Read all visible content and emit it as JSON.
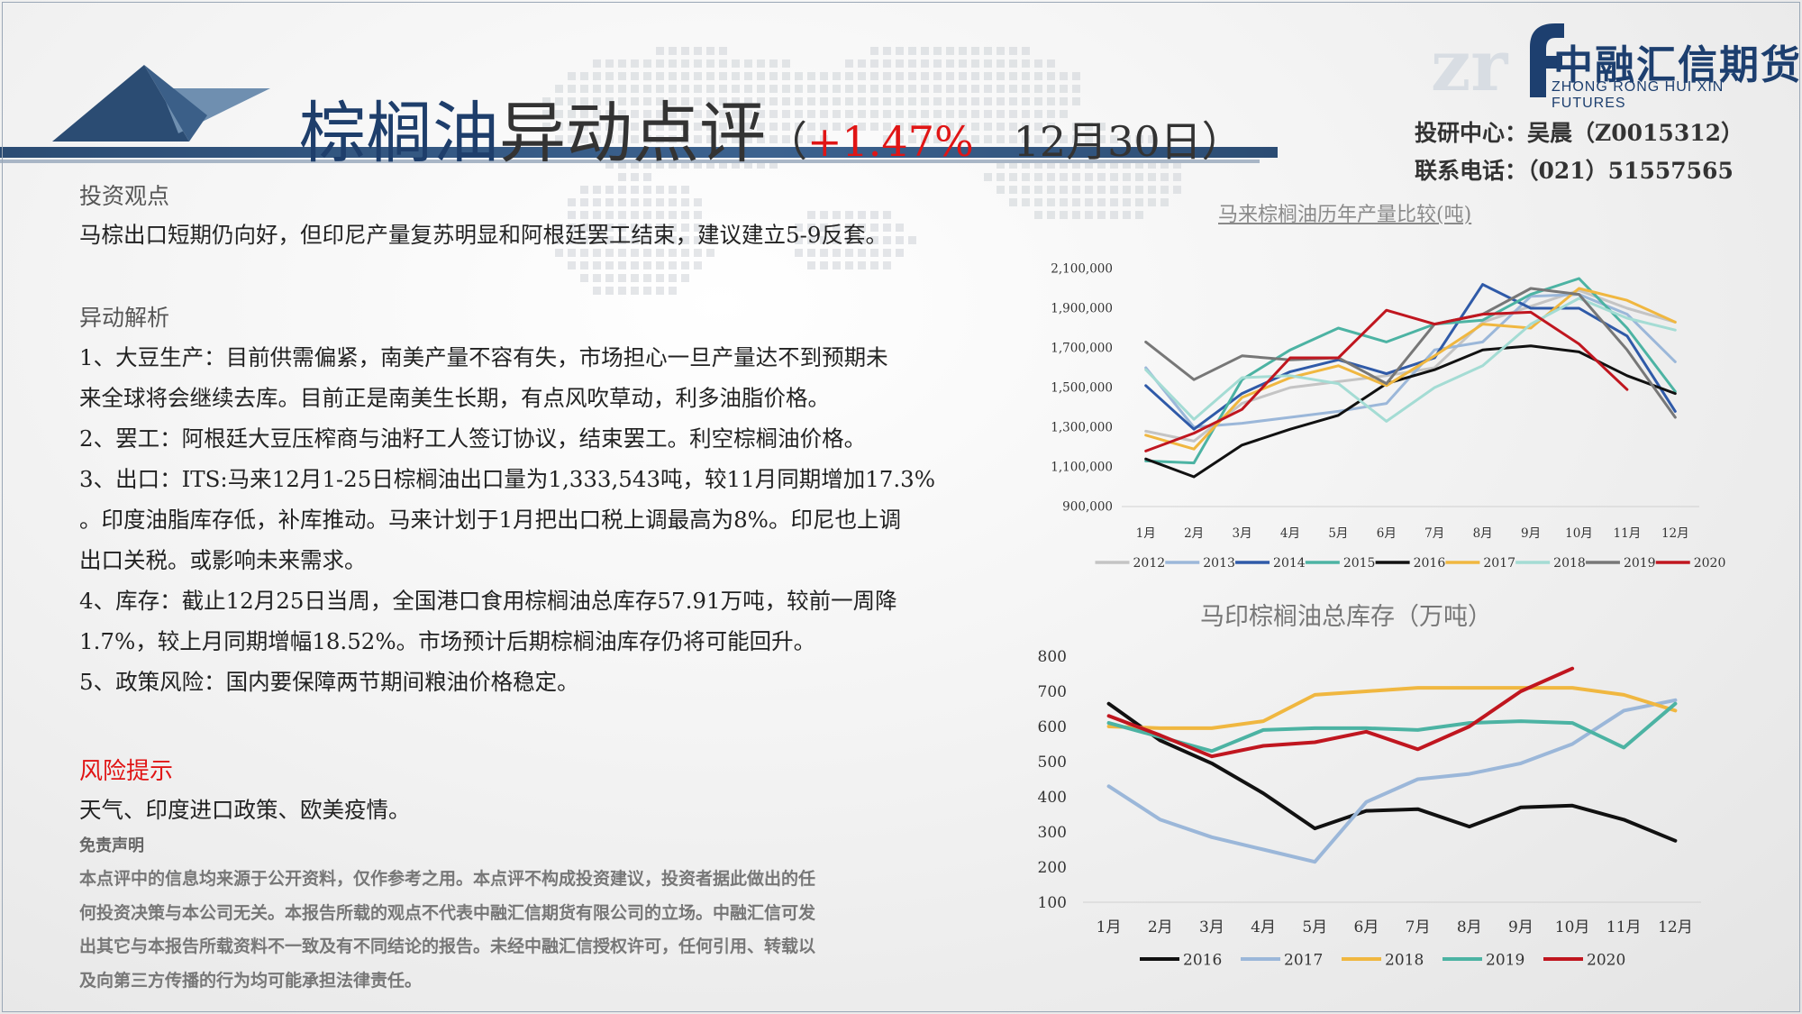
{
  "header": {
    "title_main": "棕榈油",
    "title_rest": "异动点评",
    "title_paren_open": "（",
    "title_pct": "+1.47%",
    "title_date": "12月30日）"
  },
  "logo": {
    "name_cn": "中融汇信期货",
    "name_en": "ZHONG RONG HUI XIN FUTURES"
  },
  "contact": {
    "center": "投研中心：吴晨（Z0015312）",
    "phone": "联系电话：（021）51557565"
  },
  "sections": {
    "view_heading": "投资观点",
    "view_text": "马棕出口短期仍向好，但印尼产量复苏明显和阿根廷罢工结束，建议建立5-9反套。",
    "analysis_heading": "异动解析",
    "analysis_lines": [
      "1、大豆生产：目前供需偏紧，南美产量不容有失，市场担心一旦产量达不到预期未",
      "来全球将会继续去库。目前正是南美生长期，有点风吹草动，利多油脂价格。",
      "2、罢工：阿根廷大豆压榨商与油籽工人签订协议，结束罢工。利空棕榈油价格。",
      "3、出口：ITS:马来12月1-25日棕榈油出口量为1,333,543吨，较11月同期增加17.3%",
      "。印度油脂库存低，补库推动。马来计划于1月把出口税上调最高为8%。印尼也上调",
      "出口关税。或影响未来需求。",
      "4、库存：截止12月25日当周，全国港口食用棕榈油总库存57.91万吨，较前一周降",
      "1.7%，较上月同期增幅18.52%。市场预计后期棕榈油库存仍将可能回升。",
      "5、政策风险：国内要保障两节期间粮油价格稳定。"
    ],
    "risk_heading": "风险提示",
    "risk_text": "天气、印度进口政策、欧美疫情。",
    "disclaimer_heading": "免责声明",
    "disclaimer_lines": [
      "本点评中的信息均来源于公开资料，仅作参考之用。本点评不构成投资建议，投资者据此做出的任",
      "何投资决策与本公司无关。本报告所载的观点不代表中融汇信期货有限公司的立场。中融汇信可发",
      "出其它与本报告所载资料不一致及有不同结论的报告。未经中融汇信授权许可，任何引用、转载以",
      "及向第三方传播的行为均可能承担法律责任。"
    ]
  },
  "colors": {
    "accent_navy": "#1e3e6b",
    "accent_red": "#e01515"
  },
  "chart_data": [
    {
      "type": "line",
      "title": "马来棕榈油历年产量比较(吨)",
      "categories": [
        "1月",
        "2月",
        "3月",
        "4月",
        "5月",
        "6月",
        "7月",
        "8月",
        "9月",
        "10月",
        "11月",
        "12月"
      ],
      "ylim": [
        900000,
        2100000
      ],
      "yticks": [
        900000,
        1100000,
        1300000,
        1500000,
        1700000,
        1900000,
        2100000
      ],
      "ytick_labels": [
        "900,000",
        "1,100,000",
        "1,300,000",
        "1,500,000",
        "1,700,000",
        "1,900,000",
        "2,100,000"
      ],
      "legend_position": "bottom",
      "series": [
        {
          "name": "2012",
          "color": "#c4c4c4",
          "values": [
            1280000,
            1230000,
            1420000,
            1500000,
            1530000,
            1560000,
            1600000,
            1830000,
            1910000,
            1990000,
            1900000,
            1830000
          ]
        },
        {
          "name": "2013",
          "color": "#9bb7d9",
          "values": [
            1600000,
            1300000,
            1320000,
            1350000,
            1380000,
            1420000,
            1690000,
            1730000,
            1960000,
            1970000,
            1870000,
            1630000
          ]
        },
        {
          "name": "2014",
          "color": "#2f5aa8",
          "values": [
            1510000,
            1290000,
            1470000,
            1580000,
            1640000,
            1570000,
            1650000,
            2020000,
            1900000,
            1900000,
            1760000,
            1380000
          ]
        },
        {
          "name": "2015",
          "color": "#4cb3a3",
          "values": [
            1130000,
            1120000,
            1540000,
            1690000,
            1800000,
            1730000,
            1820000,
            1840000,
            1970000,
            2050000,
            1800000,
            1480000
          ]
        },
        {
          "name": "2016",
          "color": "#111111",
          "values": [
            1140000,
            1050000,
            1210000,
            1290000,
            1360000,
            1520000,
            1590000,
            1690000,
            1710000,
            1680000,
            1560000,
            1470000
          ]
        },
        {
          "name": "2017",
          "color": "#f0b740",
          "values": [
            1260000,
            1190000,
            1450000,
            1550000,
            1610000,
            1510000,
            1660000,
            1820000,
            1800000,
            2000000,
            1940000,
            1830000
          ]
        },
        {
          "name": "2018",
          "color": "#a4dcd4",
          "values": [
            1590000,
            1340000,
            1550000,
            1560000,
            1520000,
            1330000,
            1500000,
            1610000,
            1820000,
            1950000,
            1850000,
            1790000
          ]
        },
        {
          "name": "2019",
          "color": "#777777",
          "values": [
            1730000,
            1540000,
            1660000,
            1640000,
            1650000,
            1520000,
            1820000,
            1870000,
            2000000,
            1970000,
            1690000,
            1350000
          ]
        },
        {
          "name": "2020",
          "color": "#c0161f",
          "values": [
            1180000,
            1270000,
            1390000,
            1650000,
            1650000,
            1890000,
            1820000,
            1870000,
            1880000,
            1720000,
            1490000,
            null
          ]
        }
      ]
    },
    {
      "type": "line",
      "title": "马印棕榈油总库存（万吨）",
      "categories": [
        "1月",
        "2月",
        "3月",
        "4月",
        "5月",
        "6月",
        "7月",
        "8月",
        "9月",
        "10月",
        "11月",
        "12月"
      ],
      "ylim": [
        100,
        800
      ],
      "yticks": [
        100,
        200,
        300,
        400,
        500,
        600,
        700,
        800
      ],
      "legend_position": "bottom",
      "series": [
        {
          "name": "2016",
          "color": "#111111",
          "values": [
            665,
            560,
            495,
            410,
            310,
            360,
            365,
            315,
            370,
            375,
            335,
            275
          ]
        },
        {
          "name": "2017",
          "color": "#9bb7d9",
          "values": [
            430,
            335,
            285,
            250,
            215,
            385,
            450,
            465,
            495,
            550,
            645,
            675
          ]
        },
        {
          "name": "2018",
          "color": "#f0b740",
          "values": [
            600,
            595,
            595,
            615,
            690,
            700,
            710,
            710,
            710,
            710,
            690,
            645
          ]
        },
        {
          "name": "2019",
          "color": "#4cb3a3",
          "values": [
            610,
            570,
            530,
            590,
            595,
            595,
            590,
            610,
            615,
            610,
            540,
            665
          ]
        },
        {
          "name": "2020",
          "color": "#c0161f",
          "values": [
            630,
            575,
            515,
            545,
            555,
            585,
            535,
            600,
            700,
            765,
            null,
            null
          ]
        }
      ]
    }
  ]
}
